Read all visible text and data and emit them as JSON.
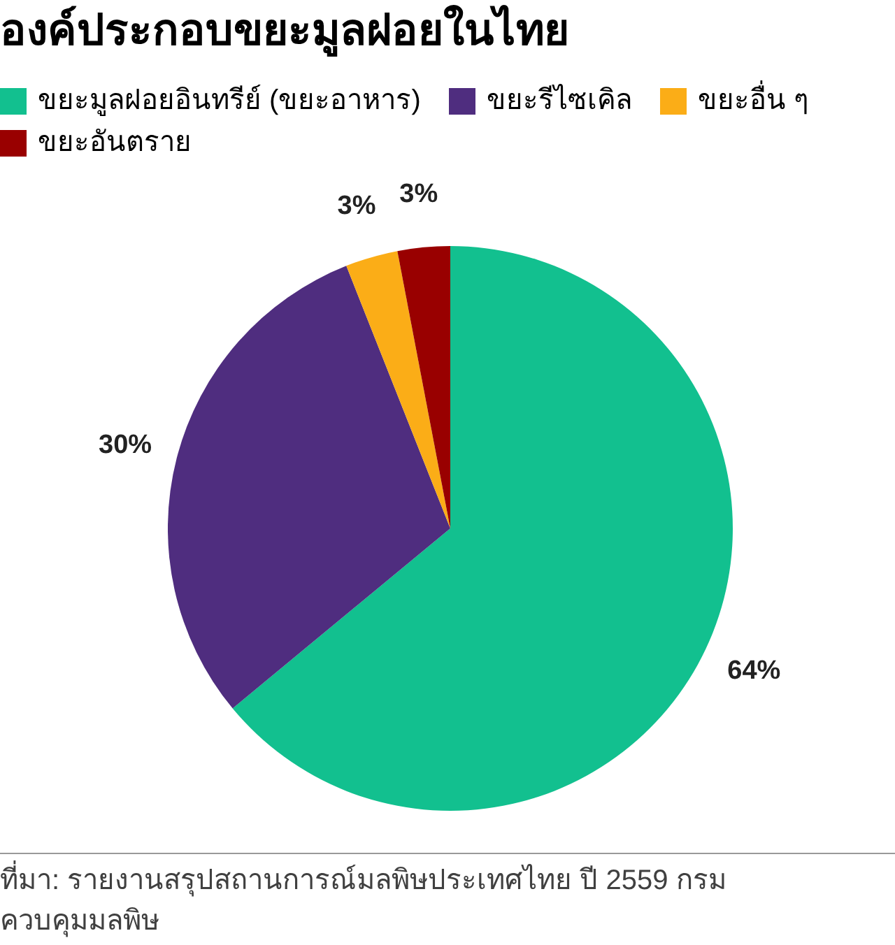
{
  "chart_data": {
    "type": "pie",
    "title": "องค์ประกอบขยะมูลฝอยในไทย",
    "categories": [
      "ขยะมูลฝอยอินทรีย์ (ขยะอาหาร)",
      "ขยะรีไซเคิล",
      "ขยะอื่น ๆ",
      "ขยะอันตราย"
    ],
    "values": [
      64,
      30,
      3,
      3
    ],
    "colors": [
      "#12c08f",
      "#4f2d7f",
      "#fbad17",
      "#990000"
    ],
    "value_labels": [
      "64%",
      "30%",
      "3%",
      "3%"
    ],
    "legend": "top",
    "annotations": [
      "ที่มา: รายงานสรุปสถานการณ์มลพิษประเทศไทย ปี 2559 กรมควบคุมมลพิษ"
    ]
  }
}
